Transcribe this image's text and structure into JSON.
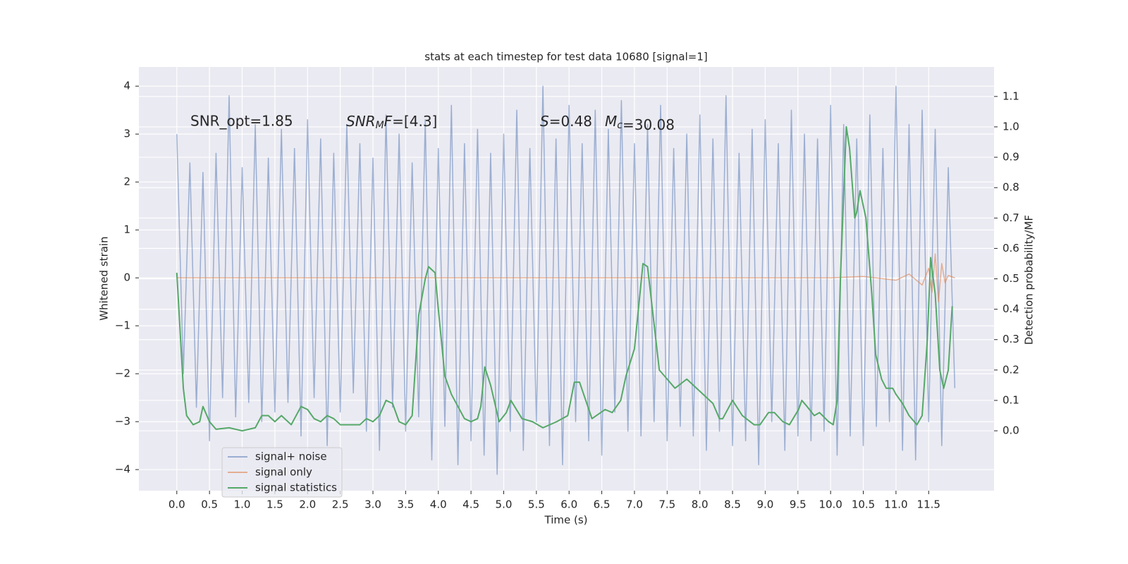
{
  "chart_data": {
    "type": "line",
    "title": "stats at each timestep for test data 10680 [signal=1]",
    "xlabel": "Time (s)",
    "ylabel": "Whitened strain",
    "y2label": "Detection probability/MF",
    "xlim": [
      -0.58,
      12.5
    ],
    "ylim": [
      -4.44,
      4.4
    ],
    "y2lim": [
      -0.197,
      1.197
    ],
    "xticks": [
      {
        "value": 0,
        "label": "0.0"
      },
      0.5,
      {
        "value": 1,
        "label": "1.0"
      },
      1.5,
      {
        "value": 2,
        "label": "2.0"
      },
      2.5,
      {
        "value": 3,
        "label": "3.0"
      },
      3.5,
      {
        "value": 4,
        "label": "4.0"
      },
      4.5,
      {
        "value": 5,
        "label": "5.0"
      },
      5.5,
      {
        "value": 6,
        "label": "6.0"
      },
      6.5,
      {
        "value": 7,
        "label": "7.0"
      },
      7.5,
      {
        "value": 8,
        "label": "8.0"
      },
      8.5,
      {
        "value": 9,
        "label": "9.0"
      },
      9.5,
      {
        "value": 10,
        "label": "10.0"
      },
      10.5,
      {
        "value": 11,
        "label": "11.0"
      },
      11.5
    ],
    "yticks": [
      {
        "value": -4,
        "label": "−4"
      },
      {
        "value": -3,
        "label": "−3"
      },
      {
        "value": -2,
        "label": "−2"
      },
      {
        "value": -1,
        "label": "−1"
      },
      0,
      1,
      2,
      3,
      4
    ],
    "y2ticks": [
      {
        "value": 0,
        "label": "0.0"
      },
      0.1,
      0.2,
      0.3,
      0.4,
      0.5,
      0.6,
      0.7,
      0.8,
      0.9,
      {
        "value": 1,
        "label": "1.0"
      },
      1.1
    ],
    "grid": true,
    "legend": "lower left",
    "annotations": [
      {
        "text": "SNR_opt=1.85",
        "math": false
      },
      {
        "text": "SNR_MF=[4.3]",
        "math": true
      },
      {
        "text": "S=0.48",
        "math": true
      },
      {
        "text": "M_c=30.08",
        "math": true
      }
    ],
    "series": [
      {
        "name": "signal+ noise",
        "color": "#4c72b0",
        "opacity": 0.5,
        "axis": "y",
        "x": [
          0,
          0.1,
          0.2,
          0.3,
          0.4,
          0.5,
          0.6,
          0.7,
          0.8,
          0.9,
          1,
          1.1,
          1.2,
          1.3,
          1.4,
          1.5,
          1.6,
          1.7,
          1.8,
          1.9,
          2,
          2.1,
          2.2,
          2.3,
          2.4,
          2.5,
          2.6,
          2.7,
          2.8,
          2.9,
          3,
          3.1,
          3.2,
          3.3,
          3.4,
          3.5,
          3.6,
          3.7,
          3.8,
          3.9,
          4,
          4.1,
          4.2,
          4.3,
          4.4,
          4.5,
          4.6,
          4.7,
          4.8,
          4.9,
          5,
          5.1,
          5.2,
          5.3,
          5.4,
          5.5,
          5.6,
          5.7,
          5.8,
          5.9,
          6,
          6.1,
          6.2,
          6.3,
          6.4,
          6.5,
          6.6,
          6.7,
          6.8,
          6.9,
          7,
          7.1,
          7.2,
          7.3,
          7.4,
          7.5,
          7.6,
          7.7,
          7.8,
          7.9,
          8,
          8.1,
          8.2,
          8.3,
          8.4,
          8.5,
          8.6,
          8.7,
          8.8,
          8.9,
          9,
          9.1,
          9.2,
          9.3,
          9.4,
          9.5,
          9.6,
          9.7,
          9.8,
          9.9,
          10,
          10.1,
          10.2,
          10.3,
          10.4,
          10.5,
          10.6,
          10.7,
          10.8,
          10.9,
          11,
          11.1,
          11.2,
          11.3,
          11.4,
          11.5,
          11.6,
          11.7,
          11.8,
          11.9
        ],
        "values": [
          3.0,
          -2.0,
          2.4,
          -2.7,
          2.2,
          -3.4,
          2.6,
          -2.5,
          3.8,
          -2.9,
          2.3,
          -2.6,
          3.2,
          -3.0,
          2.5,
          -2.8,
          3.1,
          -2.6,
          2.7,
          -3.3,
          3.3,
          -2.5,
          2.9,
          -3.5,
          2.6,
          -2.8,
          3.2,
          -2.4,
          2.8,
          -3.2,
          2.5,
          -3.6,
          3.4,
          -2.7,
          3.0,
          -3.2,
          2.4,
          -2.9,
          3.3,
          -3.8,
          2.7,
          -3.1,
          3.6,
          -3.9,
          2.8,
          -3.4,
          3.1,
          -3.7,
          2.6,
          -4.1,
          3.0,
          -3.2,
          3.5,
          -3.6,
          2.7,
          -3.0,
          4.0,
          -3.5,
          2.9,
          -3.9,
          3.6,
          -3.0,
          2.8,
          -3.4,
          3.5,
          -3.7,
          3.1,
          -2.8,
          3.7,
          -3.2,
          2.8,
          -3.3,
          3.2,
          -3.0,
          3.6,
          -3.4,
          2.7,
          -3.1,
          3.0,
          -3.3,
          3.4,
          -3.6,
          2.9,
          -3.2,
          3.8,
          -3.5,
          2.6,
          -3.4,
          3.1,
          -3.9,
          3.3,
          -3.0,
          2.8,
          -3.6,
          3.5,
          -3.3,
          3.0,
          -3.4,
          2.9,
          -3.2,
          3.6,
          -3.7,
          3.2,
          -3.3,
          2.9,
          -3.5,
          3.4,
          -3.1,
          2.7,
          -3.0,
          4.0,
          -3.6,
          3.2,
          -3.8,
          3.5,
          -3.0,
          3.1,
          -3.5,
          2.3,
          -2.3
        ]
      },
      {
        "name": "signal only",
        "color": "#dd8452",
        "opacity": 0.6,
        "axis": "y",
        "x": [
          0,
          10,
          10.5,
          11,
          11.2,
          11.4,
          11.5,
          11.55,
          11.6,
          11.65,
          11.7,
          11.75,
          11.8,
          11.9
        ],
        "values": [
          0,
          0,
          0.03,
          -0.05,
          0.08,
          -0.15,
          0.2,
          -0.3,
          0.5,
          -0.5,
          0.3,
          -0.1,
          0.05,
          0
        ]
      },
      {
        "name": "signal statistics",
        "color": "#55a868",
        "opacity": 1,
        "axis": "y2",
        "x": [
          0,
          0.1,
          0.15,
          0.25,
          0.35,
          0.4,
          0.5,
          0.6,
          0.8,
          1.0,
          1.2,
          1.3,
          1.4,
          1.5,
          1.6,
          1.75,
          1.9,
          2.0,
          2.1,
          2.2,
          2.3,
          2.4,
          2.5,
          2.6,
          2.8,
          2.9,
          3.0,
          3.1,
          3.2,
          3.3,
          3.4,
          3.5,
          3.6,
          3.7,
          3.8,
          3.85,
          3.95,
          4.0,
          4.1,
          4.2,
          4.3,
          4.4,
          4.5,
          4.6,
          4.65,
          4.71,
          4.8,
          4.93,
          5.04,
          5.11,
          5.28,
          5.44,
          5.6,
          5.81,
          5.98,
          6.08,
          6.16,
          6.35,
          6.55,
          6.66,
          6.79,
          6.87,
          7.0,
          7.13,
          7.2,
          7.38,
          7.5,
          7.62,
          7.8,
          8.0,
          8.2,
          8.3,
          8.35,
          8.5,
          8.65,
          8.83,
          8.92,
          9.05,
          9.14,
          9.27,
          9.37,
          9.51,
          9.56,
          9.64,
          9.75,
          9.83,
          9.97,
          10.04,
          10.1,
          10.15,
          10.24,
          10.29,
          10.37,
          10.4,
          10.45,
          10.54,
          10.63,
          10.69,
          10.78,
          10.85,
          10.95,
          11.0,
          11.1,
          11.2,
          11.28,
          11.32,
          11.4,
          11.48,
          11.53,
          11.6,
          11.67,
          11.73,
          11.8,
          11.86
        ],
        "values": [
          0.52,
          0.14,
          0.05,
          0.02,
          0.03,
          0.08,
          0.03,
          0.005,
          0.01,
          0.0,
          0.01,
          0.05,
          0.05,
          0.03,
          0.05,
          0.02,
          0.08,
          0.07,
          0.04,
          0.03,
          0.05,
          0.04,
          0.02,
          0.02,
          0.02,
          0.04,
          0.03,
          0.05,
          0.1,
          0.09,
          0.03,
          0.02,
          0.05,
          0.38,
          0.5,
          0.54,
          0.52,
          0.4,
          0.18,
          0.12,
          0.08,
          0.04,
          0.03,
          0.04,
          0.08,
          0.21,
          0.15,
          0.03,
          0.06,
          0.1,
          0.04,
          0.03,
          0.01,
          0.03,
          0.05,
          0.16,
          0.16,
          0.04,
          0.07,
          0.06,
          0.1,
          0.18,
          0.27,
          0.55,
          0.54,
          0.2,
          0.17,
          0.14,
          0.17,
          0.13,
          0.09,
          0.04,
          0.04,
          0.1,
          0.05,
          0.02,
          0.02,
          0.06,
          0.06,
          0.03,
          0.02,
          0.07,
          0.1,
          0.08,
          0.05,
          0.06,
          0.03,
          0.02,
          0.1,
          0.5,
          1.0,
          0.93,
          0.7,
          0.72,
          0.79,
          0.7,
          0.45,
          0.25,
          0.17,
          0.14,
          0.14,
          0.12,
          0.09,
          0.05,
          0.03,
          0.02,
          0.05,
          0.3,
          0.57,
          0.45,
          0.2,
          0.14,
          0.2,
          0.41
        ]
      }
    ]
  }
}
